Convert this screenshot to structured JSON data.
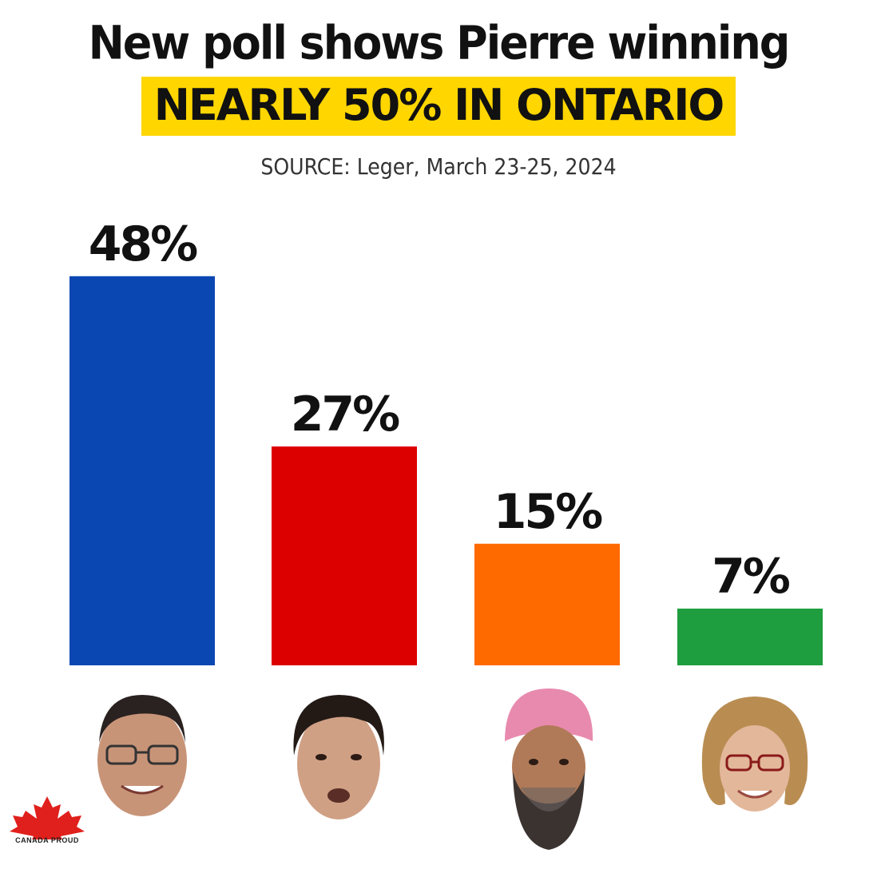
{
  "header": {
    "title": "New poll shows Pierre winning",
    "highlight": "NEARLY 50% IN ONTARIO",
    "source": "SOURCE: Leger, March 23-25, 2024"
  },
  "chart_data": {
    "type": "bar",
    "categories": [
      "",
      "",
      "",
      ""
    ],
    "values": [
      48,
      27,
      15,
      7
    ],
    "value_labels": [
      "48%",
      "27%",
      "15%",
      "7%"
    ],
    "colors": [
      "#0a47b3",
      "#dd0000",
      "#ff6a00",
      "#1e9e3e"
    ],
    "ylim": [
      0,
      50
    ],
    "grid": false,
    "legend": "none",
    "title": "",
    "xlabel": "",
    "ylabel": ""
  },
  "photos": [
    {
      "icon": "person-glasses-face-icon"
    },
    {
      "icon": "person-face-icon"
    },
    {
      "icon": "person-turban-face-icon"
    },
    {
      "icon": "person-glasses-woman-face-icon"
    }
  ],
  "logo": {
    "text": "CANADA PROUD",
    "icon": "maple-leaf-icon",
    "color": "#e0201c"
  }
}
